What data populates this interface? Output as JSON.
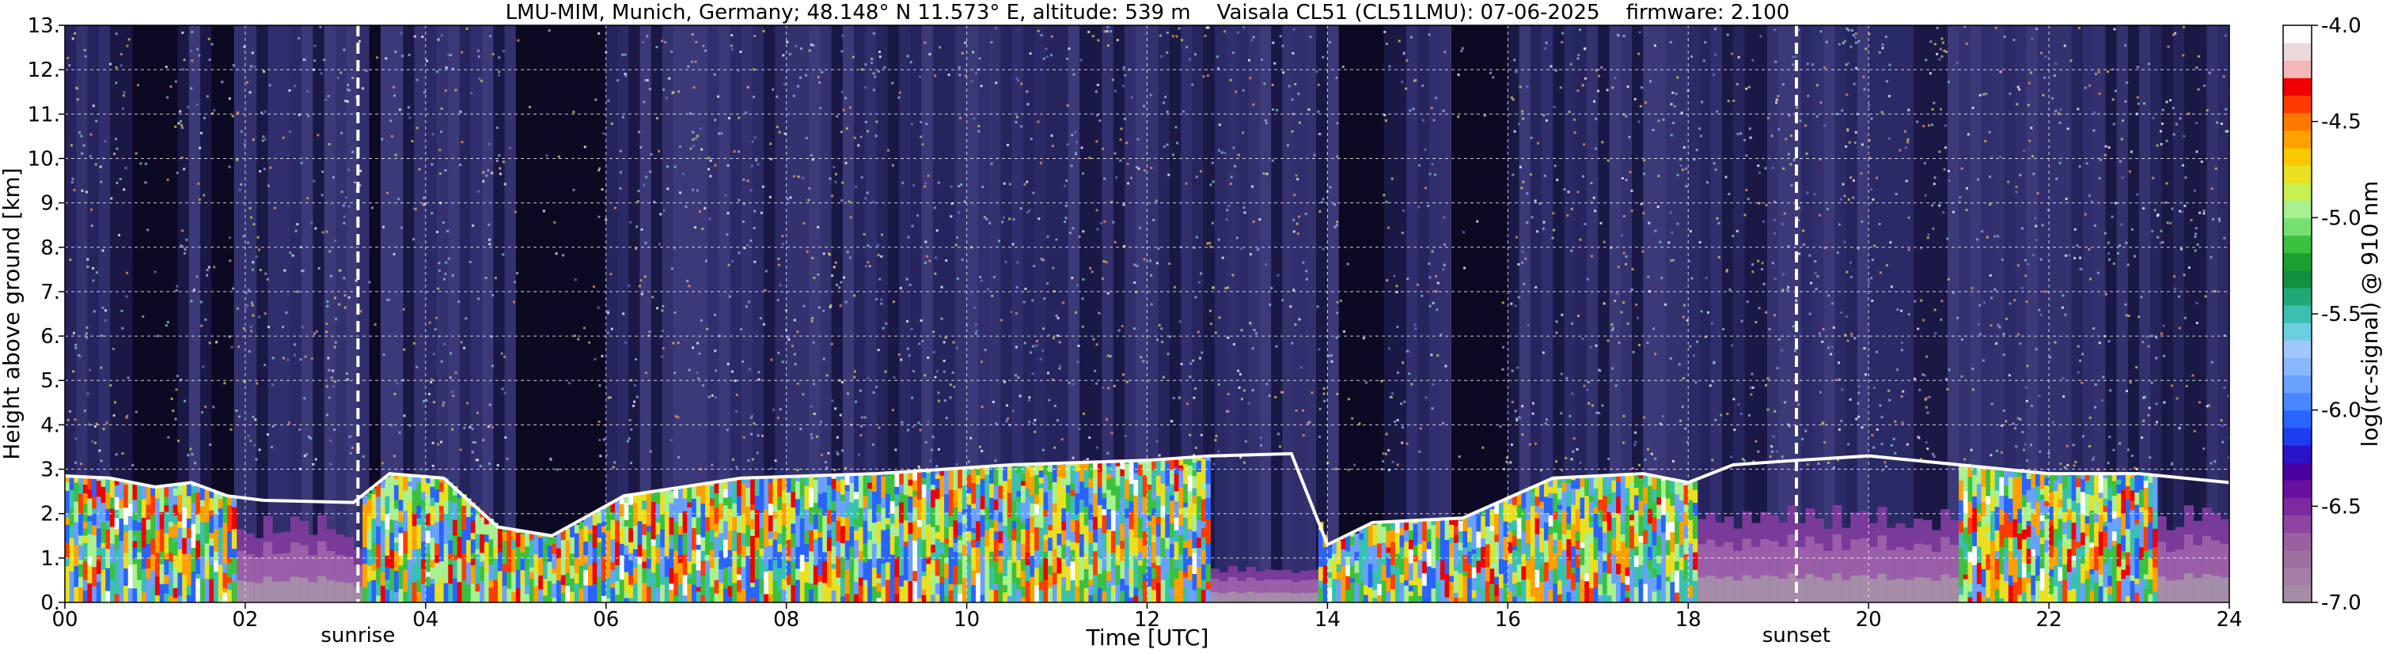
{
  "chart_data": {
    "type": "heatmap",
    "title": "LMU-MIM, Munich, Germany; 48.148° N 11.573° E, altitude: 539 m    Vaisala CL51 (CL51LMU): 07-06-2025    firmware: 2.100",
    "xlabel": "Time [UTC]",
    "ylabel": "Height above ground [km]",
    "xlim": [
      0,
      24
    ],
    "ylim": [
      0,
      13
    ],
    "x_ticks": [
      {
        "value": 0,
        "label": "00"
      },
      {
        "value": 2,
        "label": "02"
      },
      {
        "value": 4,
        "label": "04"
      },
      {
        "value": 6,
        "label": "06"
      },
      {
        "value": 8,
        "label": "08"
      },
      {
        "value": 10,
        "label": "10"
      },
      {
        "value": 12,
        "label": "12"
      },
      {
        "value": 14,
        "label": "14"
      },
      {
        "value": 16,
        "label": "16"
      },
      {
        "value": 18,
        "label": "18"
      },
      {
        "value": 20,
        "label": "20"
      },
      {
        "value": 22,
        "label": "22"
      },
      {
        "value": 24,
        "label": "24"
      }
    ],
    "y_ticks": [
      {
        "value": 0,
        "label": "0."
      },
      {
        "value": 1,
        "label": "1."
      },
      {
        "value": 2,
        "label": "2."
      },
      {
        "value": 3,
        "label": "3."
      },
      {
        "value": 4,
        "label": "4."
      },
      {
        "value": 5,
        "label": "5."
      },
      {
        "value": 6,
        "label": "6."
      },
      {
        "value": 7,
        "label": "7."
      },
      {
        "value": 8,
        "label": "8."
      },
      {
        "value": 9,
        "label": "9."
      },
      {
        "value": 10,
        "label": "10."
      },
      {
        "value": 11,
        "label": "11."
      },
      {
        "value": 12,
        "label": "12."
      },
      {
        "value": 13,
        "label": "13."
      }
    ],
    "grid": true,
    "annotations": [
      {
        "label": "sunrise",
        "time": 3.25
      },
      {
        "label": "sunset",
        "time": 19.2
      }
    ],
    "colorbar": {
      "label": "log(rc-signal) @ 910 nm",
      "range": [
        -7.0,
        -4.0
      ],
      "ticks": [
        {
          "value": -4.0,
          "label": "-4.0"
        },
        {
          "value": -4.5,
          "label": "-4.5"
        },
        {
          "value": -5.0,
          "label": "-5.0"
        },
        {
          "value": -5.5,
          "label": "-5.5"
        },
        {
          "value": -6.0,
          "label": "-6.0"
        },
        {
          "value": -6.5,
          "label": "-6.5"
        },
        {
          "value": -7.0,
          "label": "-7.0"
        }
      ],
      "colors_bottom_to_top": [
        "#a58ca5",
        "#a57ea5",
        "#9e70a0",
        "#9a5fa0",
        "#8e46a0",
        "#7d2aa0",
        "#6a10a0",
        "#4a00a0",
        "#2a14c8",
        "#1e3cf0",
        "#2a64ff",
        "#4a86ff",
        "#6aa0ff",
        "#8ab8ff",
        "#a0c8ff",
        "#6ad0e0",
        "#3ac0b0",
        "#20a878",
        "#129040",
        "#1aa030",
        "#3cc040",
        "#78e070",
        "#a8f090",
        "#c8f050",
        "#e8e020",
        "#f8c800",
        "#ffa000",
        "#ff7800",
        "#ff3c00",
        "#f00000",
        "#f4b8b8",
        "#ead8da",
        "#ffffff"
      ]
    },
    "cloud_base_km": [
      {
        "t": 0.0,
        "h": 2.85
      },
      {
        "t": 0.5,
        "h": 2.8
      },
      {
        "t": 1.0,
        "h": 2.6
      },
      {
        "t": 1.4,
        "h": 2.7
      },
      {
        "t": 1.8,
        "h": 2.4
      },
      {
        "t": 2.2,
        "h": 2.3
      },
      {
        "t": 3.2,
        "h": 2.25
      },
      {
        "t": 3.6,
        "h": 2.9
      },
      {
        "t": 4.2,
        "h": 2.8
      },
      {
        "t": 4.8,
        "h": 1.7
      },
      {
        "t": 5.4,
        "h": 1.5
      },
      {
        "t": 6.2,
        "h": 2.4
      },
      {
        "t": 7.5,
        "h": 2.8
      },
      {
        "t": 9.0,
        "h": 2.9
      },
      {
        "t": 10.5,
        "h": 3.1
      },
      {
        "t": 12.0,
        "h": 3.2
      },
      {
        "t": 12.7,
        "h": 3.3
      },
      {
        "t": 13.6,
        "h": 3.35
      },
      {
        "t": 14.0,
        "h": 1.3
      },
      {
        "t": 14.5,
        "h": 1.8
      },
      {
        "t": 15.5,
        "h": 1.9
      },
      {
        "t": 16.5,
        "h": 2.8
      },
      {
        "t": 17.5,
        "h": 2.9
      },
      {
        "t": 18.0,
        "h": 2.7
      },
      {
        "t": 18.5,
        "h": 3.1
      },
      {
        "t": 19.2,
        "h": 3.2
      },
      {
        "t": 20.0,
        "h": 3.3
      },
      {
        "t": 21.0,
        "h": 3.1
      },
      {
        "t": 22.0,
        "h": 2.9
      },
      {
        "t": 23.0,
        "h": 2.9
      },
      {
        "t": 24.0,
        "h": 2.7
      }
    ]
  }
}
